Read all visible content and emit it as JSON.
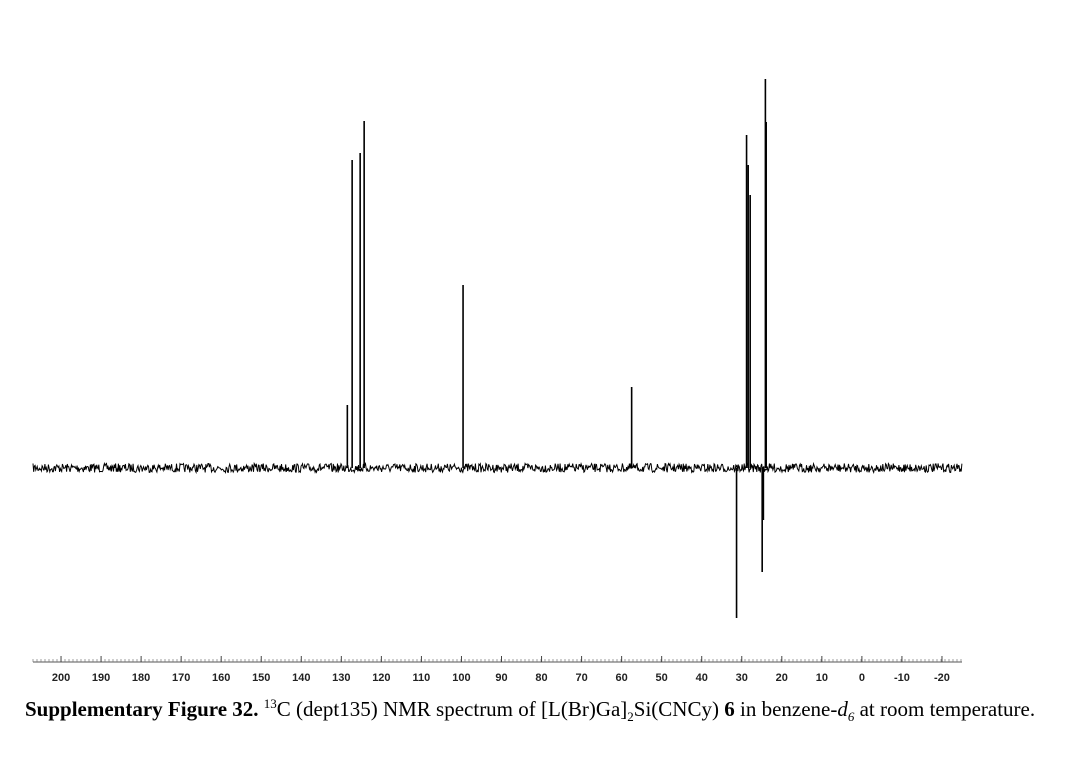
{
  "chart_data": {
    "type": "stick",
    "x": [
      128.5,
      127.3,
      125.3,
      124.3,
      99.6,
      57.5,
      31.3,
      28.8,
      28.4,
      27.9,
      24.9,
      24.6,
      24.1,
      23.9
    ],
    "values": [
      63,
      308,
      315,
      347,
      183,
      81,
      -150,
      333,
      303,
      273,
      -104,
      -52,
      389,
      346
    ],
    "color": "#000000",
    "xlim": [
      207,
      -25
    ],
    "ylim": [
      -160,
      400
    ],
    "xticks": [
      200,
      190,
      180,
      170,
      160,
      150,
      140,
      130,
      120,
      110,
      100,
      90,
      80,
      70,
      60,
      50,
      40,
      30,
      20,
      10,
      0,
      -10,
      -20
    ],
    "caption": [
      "Supplementary Figure 32.",
      "13",
      "C (dept135) NMR spectrum of [L(Br)Ga]",
      "2",
      "Si(CNCy) ",
      "6",
      " in benzene-",
      "d",
      "6",
      " at room temperature."
    ]
  }
}
